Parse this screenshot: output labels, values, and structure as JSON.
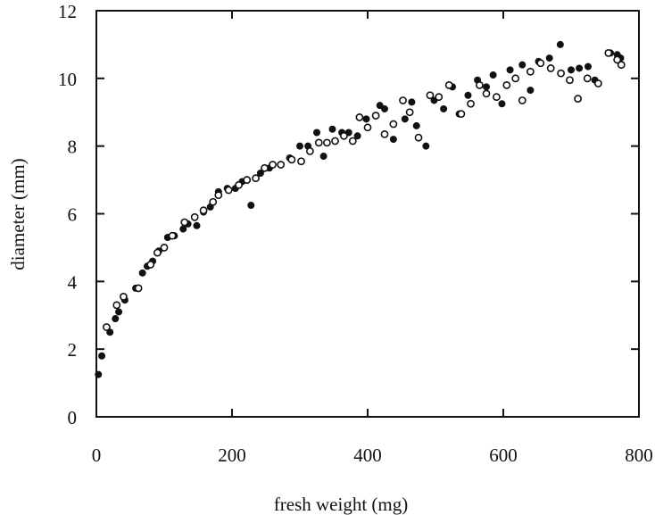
{
  "chart_data": {
    "type": "scatter",
    "xlabel": "fresh weight (mg)",
    "ylabel": "diameter (mm)",
    "xlim": [
      0,
      800
    ],
    "ylim": [
      0,
      12
    ],
    "xticks": [
      "0",
      "200",
      "400",
      "600",
      "800"
    ],
    "yticks": [
      "0",
      "2",
      "4",
      "6",
      "8",
      "10",
      "12"
    ],
    "grid": false,
    "series": [
      {
        "marker": "filled",
        "color": "#111111",
        "points": [
          [
            3,
            1.25
          ],
          [
            8,
            1.8
          ],
          [
            20,
            2.5
          ],
          [
            28,
            2.9
          ],
          [
            33,
            3.1
          ],
          [
            42,
            3.45
          ],
          [
            58,
            3.8
          ],
          [
            68,
            4.25
          ],
          [
            75,
            4.45
          ],
          [
            83,
            4.6
          ],
          [
            92,
            4.9
          ],
          [
            105,
            5.3
          ],
          [
            115,
            5.35
          ],
          [
            128,
            5.55
          ],
          [
            135,
            5.7
          ],
          [
            148,
            5.65
          ],
          [
            158,
            6.05
          ],
          [
            168,
            6.2
          ],
          [
            180,
            6.65
          ],
          [
            193,
            6.75
          ],
          [
            205,
            6.75
          ],
          [
            215,
            6.95
          ],
          [
            228,
            6.25
          ],
          [
            242,
            7.2
          ],
          [
            255,
            7.35
          ],
          [
            272,
            7.45
          ],
          [
            285,
            7.65
          ],
          [
            300,
            8.0
          ],
          [
            312,
            8.0
          ],
          [
            325,
            8.4
          ],
          [
            335,
            7.7
          ],
          [
            348,
            8.5
          ],
          [
            362,
            8.4
          ],
          [
            372,
            8.4
          ],
          [
            385,
            8.3
          ],
          [
            398,
            8.8
          ],
          [
            418,
            9.2
          ],
          [
            425,
            9.1
          ],
          [
            438,
            8.2
          ],
          [
            455,
            8.8
          ],
          [
            465,
            9.3
          ],
          [
            472,
            8.6
          ],
          [
            486,
            8.0
          ],
          [
            498,
            9.35
          ],
          [
            512,
            9.1
          ],
          [
            525,
            9.75
          ],
          [
            535,
            8.95
          ],
          [
            548,
            9.5
          ],
          [
            562,
            9.95
          ],
          [
            575,
            9.75
          ],
          [
            585,
            10.1
          ],
          [
            598,
            9.25
          ],
          [
            610,
            10.25
          ],
          [
            628,
            10.4
          ],
          [
            640,
            9.65
          ],
          [
            652,
            10.5
          ],
          [
            668,
            10.6
          ],
          [
            684,
            11.0
          ],
          [
            700,
            10.25
          ],
          [
            712,
            10.3
          ],
          [
            725,
            10.35
          ],
          [
            735,
            9.95
          ],
          [
            758,
            10.75
          ],
          [
            768,
            10.7
          ],
          [
            773,
            10.6
          ]
        ]
      },
      {
        "marker": "open",
        "color": "#111111",
        "points": [
          [
            15,
            2.65
          ],
          [
            30,
            3.3
          ],
          [
            40,
            3.55
          ],
          [
            62,
            3.8
          ],
          [
            80,
            4.5
          ],
          [
            90,
            4.85
          ],
          [
            100,
            5.0
          ],
          [
            112,
            5.35
          ],
          [
            130,
            5.75
          ],
          [
            145,
            5.9
          ],
          [
            158,
            6.1
          ],
          [
            172,
            6.35
          ],
          [
            180,
            6.55
          ],
          [
            195,
            6.7
          ],
          [
            210,
            6.85
          ],
          [
            222,
            7.0
          ],
          [
            235,
            7.05
          ],
          [
            248,
            7.35
          ],
          [
            260,
            7.45
          ],
          [
            272,
            7.45
          ],
          [
            288,
            7.6
          ],
          [
            302,
            7.55
          ],
          [
            315,
            7.85
          ],
          [
            328,
            8.1
          ],
          [
            340,
            8.1
          ],
          [
            352,
            8.15
          ],
          [
            365,
            8.3
          ],
          [
            378,
            8.15
          ],
          [
            388,
            8.85
          ],
          [
            400,
            8.55
          ],
          [
            412,
            8.9
          ],
          [
            425,
            8.35
          ],
          [
            438,
            8.65
          ],
          [
            452,
            9.35
          ],
          [
            462,
            9.0
          ],
          [
            475,
            8.25
          ],
          [
            492,
            9.5
          ],
          [
            505,
            9.45
          ],
          [
            520,
            9.8
          ],
          [
            538,
            8.95
          ],
          [
            552,
            9.25
          ],
          [
            565,
            9.8
          ],
          [
            575,
            9.55
          ],
          [
            590,
            9.45
          ],
          [
            605,
            9.8
          ],
          [
            618,
            10.0
          ],
          [
            628,
            9.35
          ],
          [
            640,
            10.2
          ],
          [
            655,
            10.45
          ],
          [
            670,
            10.3
          ],
          [
            685,
            10.15
          ],
          [
            698,
            9.95
          ],
          [
            710,
            9.4
          ],
          [
            724,
            10.0
          ],
          [
            740,
            9.85
          ],
          [
            755,
            10.75
          ],
          [
            768,
            10.55
          ],
          [
            774,
            10.4
          ]
        ]
      }
    ]
  }
}
